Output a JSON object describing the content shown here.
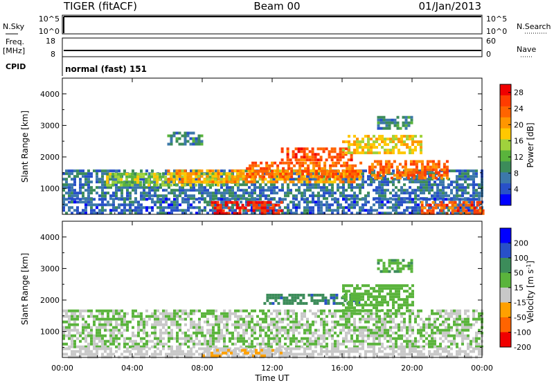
{
  "header": {
    "station": "TIGER (fitACF)",
    "beam": "Beam 00",
    "date": "01/Jan/2013"
  },
  "top_panels": {
    "nsky_label": "N.Sky",
    "nsky_ticks": [
      "10^5",
      "10^0"
    ],
    "nsearch_label": "N.Search",
    "nsearch_ticks": [
      "10^5",
      "10^0"
    ],
    "freq_label_1": "Freq.",
    "freq_label_2": "[MHz]",
    "freq_ticks": [
      "18",
      "8"
    ],
    "nave_label": "Nave",
    "nave_ticks": [
      "60",
      "0"
    ],
    "cpid_label": "CPID",
    "cpid_value": "normal (fast) 151"
  },
  "chart_data": [
    {
      "type": "heatmap",
      "title": "",
      "xlabel": "Time UT",
      "ylabel": "Slant Range [km]",
      "xlim": [
        0,
        24
      ],
      "ylim": [
        180,
        4500
      ],
      "xticks": [
        "00:00",
        "04:00",
        "08:00",
        "12:00",
        "16:00",
        "20:00",
        "00:00"
      ],
      "yticks": [
        1000,
        2000,
        3000,
        4000
      ],
      "colorbar": {
        "label": "Power [dB]",
        "ticks": [
          "4",
          "8",
          "12",
          "16",
          "20",
          "24",
          "28"
        ],
        "colors": [
          "#0000ff",
          "#2850c8",
          "#3c78aa",
          "#3c8c5a",
          "#5ab43c",
          "#a0d23c",
          "#ffc800",
          "#ff9600",
          "#ff6400",
          "#ff3c00",
          "#f00000"
        ],
        "range": [
          0,
          30
        ]
      },
      "regions": [
        {
          "t": [
            0,
            24
          ],
          "r": [
            700,
            1600
          ],
          "level": 6
        },
        {
          "t": [
            0,
            24
          ],
          "r": [
            200,
            700
          ],
          "level": 5
        },
        {
          "t": [
            2.5,
            10
          ],
          "r": [
            1100,
            1500
          ],
          "level": 14
        },
        {
          "t": [
            6,
            17
          ],
          "r": [
            1200,
            1600
          ],
          "level": 20
        },
        {
          "t": [
            10.5,
            17
          ],
          "r": [
            1400,
            1850
          ],
          "level": 24
        },
        {
          "t": [
            12.5,
            16.5
          ],
          "r": [
            1900,
            2300
          ],
          "level": 26
        },
        {
          "t": [
            16,
            20.5
          ],
          "r": [
            2100,
            2700
          ],
          "level": 18
        },
        {
          "t": [
            17.5,
            22
          ],
          "r": [
            1300,
            1900
          ],
          "level": 24
        },
        {
          "t": [
            8.5,
            12.5
          ],
          "r": [
            200,
            600
          ],
          "level": 29
        },
        {
          "t": [
            20.5,
            24
          ],
          "r": [
            200,
            600
          ],
          "level": 25
        },
        {
          "t": [
            6,
            8
          ],
          "r": [
            2400,
            2800
          ],
          "level": 8
        },
        {
          "t": [
            18,
            20
          ],
          "r": [
            2900,
            3300
          ],
          "level": 8
        }
      ]
    },
    {
      "type": "heatmap",
      "title": "",
      "xlabel": "Time UT",
      "ylabel": "Slant Range [km]",
      "xlim": [
        0,
        24
      ],
      "ylim": [
        180,
        4500
      ],
      "xticks": [
        "00:00",
        "04:00",
        "08:00",
        "12:00",
        "16:00",
        "20:00",
        "00:00"
      ],
      "yticks": [
        1000,
        2000,
        3000,
        4000
      ],
      "colorbar": {
        "label": "Velocity [m s^-1]",
        "ticks": [
          "200",
          "100",
          "50",
          "15",
          "-15",
          "-50",
          "-100",
          "-200"
        ],
        "colors": [
          "#0000ff",
          "#2850c8",
          "#3c8c5a",
          "#5ab43c",
          "#c8c8c8",
          "#ffa000",
          "#ff6400",
          "#f00000"
        ],
        "range": [
          -250,
          250
        ]
      },
      "regions": [
        {
          "t": [
            0,
            24
          ],
          "r": [
            500,
            1700
          ],
          "level": 0
        },
        {
          "t": [
            0,
            24
          ],
          "r": [
            200,
            500
          ],
          "level": -30
        },
        {
          "t": [
            11.5,
            17
          ],
          "r": [
            1900,
            2200
          ],
          "level": 120
        },
        {
          "t": [
            16,
            20
          ],
          "r": [
            1700,
            2500
          ],
          "level": 30
        },
        {
          "t": [
            18,
            20
          ],
          "r": [
            2900,
            3300
          ],
          "level": 60
        },
        {
          "t": [
            8,
            13
          ],
          "r": [
            200,
            450
          ],
          "level": -60
        }
      ]
    }
  ]
}
